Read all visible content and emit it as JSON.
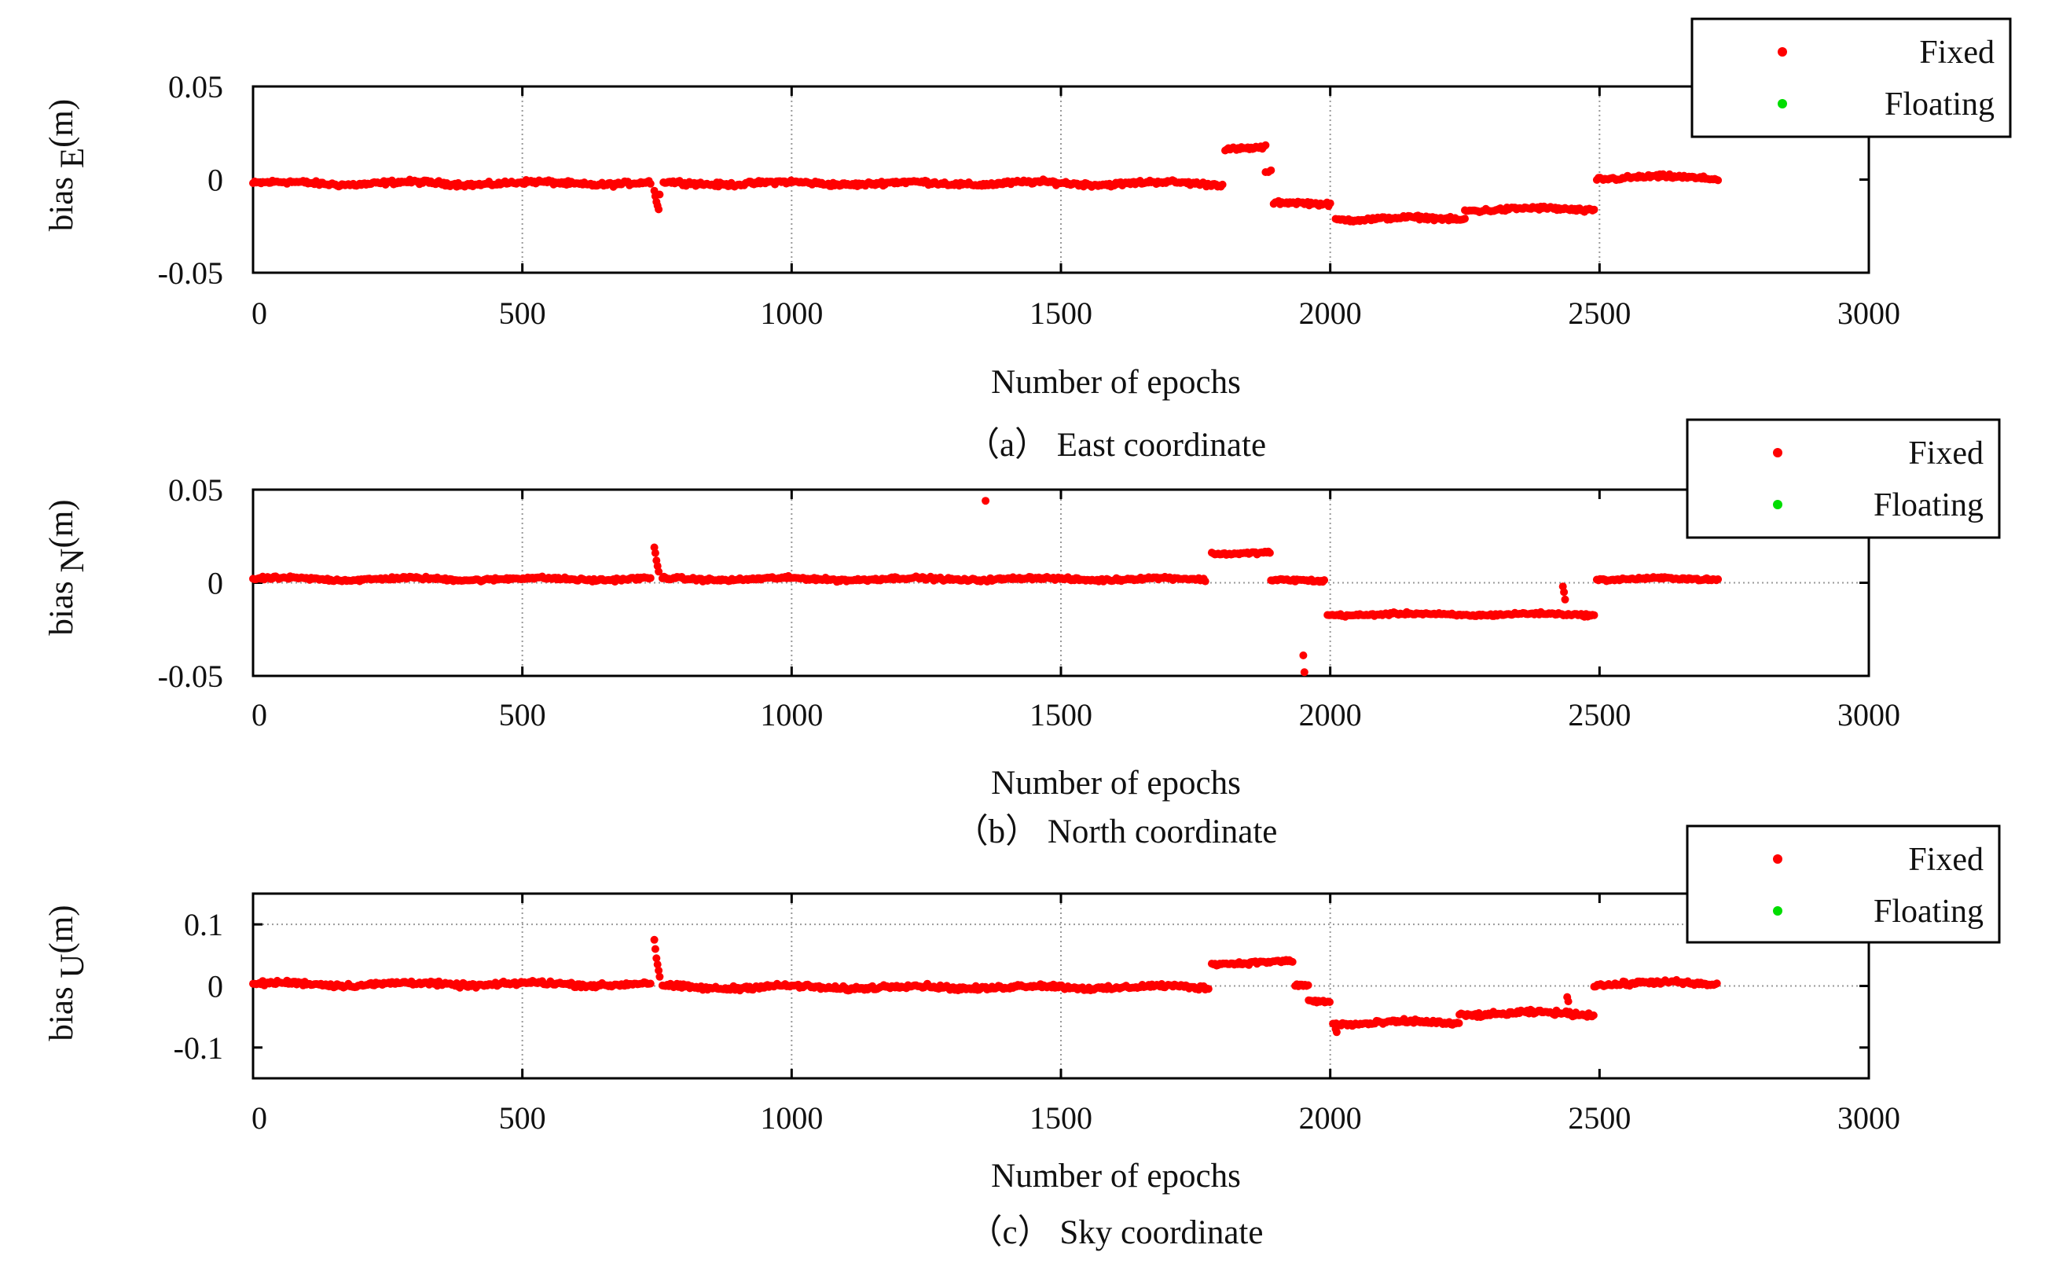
{
  "chart_data": [
    {
      "type": "scatter",
      "caption": "（a） East coordinate",
      "xlabel": "Number of epochs",
      "ylabel_main": "bias",
      "ylabel_sub": "E",
      "ylabel_unit": "(m)",
      "xlim": [
        0,
        3000
      ],
      "ylim": [
        -0.05,
        0.05
      ],
      "xticks": [
        0,
        500,
        1000,
        1500,
        2000,
        2500,
        3000
      ],
      "xtick_labels": [
        "0",
        "500",
        "1000",
        "1500",
        "2000",
        "2500",
        "3000"
      ],
      "yticks": [
        -0.05,
        0,
        0.05
      ],
      "ytick_labels": [
        "-0.05",
        "0",
        "0.05"
      ],
      "grid_x": [
        500,
        1000,
        1500,
        2000,
        2500
      ],
      "grid_y": [],
      "legend": {
        "position": "top-right",
        "entries": [
          {
            "label": "Fixed",
            "color": "#ff0000"
          },
          {
            "label": "Floating",
            "color": "#00dd00"
          }
        ]
      },
      "series": [
        {
          "name": "Fixed",
          "color": "#ff0000",
          "segments": [
            {
              "x0": 0,
              "x1": 740,
              "level": -0.002,
              "noise": 0.0016
            },
            {
              "x0": 762,
              "x1": 1800,
              "level": -0.002,
              "noise": 0.0016
            },
            {
              "x0": 1805,
              "x1": 1880,
              "level": 0.017,
              "noise": 0.0014
            },
            {
              "x0": 1895,
              "x1": 2000,
              "level": -0.013,
              "noise": 0.0014
            },
            {
              "x0": 2010,
              "x1": 2250,
              "level": -0.021,
              "noise": 0.0014
            },
            {
              "x0": 2250,
              "x1": 2490,
              "level": -0.016,
              "noise": 0.0015
            },
            {
              "x0": 2495,
              "x1": 2720,
              "level": 0.001,
              "noise": 0.0015
            }
          ],
          "points": [
            [
              745,
              -0.006
            ],
            [
              747,
              -0.009
            ],
            [
              749,
              -0.012
            ],
            [
              751,
              -0.014
            ],
            [
              753,
              -0.016
            ],
            [
              755,
              -0.008
            ],
            [
              1880,
              0.004
            ],
            [
              1885,
              0.004
            ],
            [
              1890,
              0.005
            ]
          ]
        },
        {
          "name": "Floating",
          "color": "#00dd00",
          "segments": [],
          "points": []
        }
      ]
    },
    {
      "type": "scatter",
      "caption": "（b） North coordinate",
      "xlabel": "Number of epochs",
      "ylabel_main": "bias",
      "ylabel_sub": "N",
      "ylabel_unit": "(m)",
      "xlim": [
        0,
        3000
      ],
      "ylim": [
        -0.05,
        0.05
      ],
      "xticks": [
        0,
        500,
        1000,
        1500,
        2000,
        2500,
        3000
      ],
      "xtick_labels": [
        "0",
        "500",
        "1000",
        "1500",
        "2000",
        "2500",
        "3000"
      ],
      "yticks": [
        -0.05,
        0,
        0.05
      ],
      "ytick_labels": [
        "-0.05",
        "0",
        "0.05"
      ],
      "grid_x": [
        500,
        1000,
        1500,
        2000
      ],
      "grid_y": [
        0
      ],
      "legend": {
        "position": "top-right",
        "entries": [
          {
            "label": "Fixed",
            "color": "#ff0000"
          },
          {
            "label": "Floating",
            "color": "#00dd00"
          }
        ]
      },
      "series": [
        {
          "name": "Fixed",
          "color": "#ff0000",
          "segments": [
            {
              "x0": 0,
              "x1": 740,
              "level": 0.002,
              "noise": 0.0012
            },
            {
              "x0": 760,
              "x1": 1770,
              "level": 0.002,
              "noise": 0.0012
            },
            {
              "x0": 1780,
              "x1": 1890,
              "level": 0.016,
              "noise": 0.001
            },
            {
              "x0": 1890,
              "x1": 1990,
              "level": 0.001,
              "noise": 0.001
            },
            {
              "x0": 1995,
              "x1": 2490,
              "level": -0.017,
              "noise": 0.001
            },
            {
              "x0": 2495,
              "x1": 2720,
              "level": 0.002,
              "noise": 0.001
            }
          ],
          "points": [
            [
              745,
              0.019
            ],
            [
              747,
              0.016
            ],
            [
              749,
              0.012
            ],
            [
              751,
              0.009
            ],
            [
              753,
              0.006
            ],
            [
              1360,
              0.044
            ],
            [
              1950,
              -0.039
            ],
            [
              1952,
              -0.048
            ],
            [
              2432,
              -0.002
            ],
            [
              2434,
              -0.005
            ],
            [
              2436,
              -0.009
            ]
          ]
        },
        {
          "name": "Floating",
          "color": "#00dd00",
          "segments": [],
          "points": []
        }
      ]
    },
    {
      "type": "scatter",
      "caption": "（c） Sky coordinate",
      "xlabel": "Number of epochs",
      "ylabel_main": "bias",
      "ylabel_sub": "U",
      "ylabel_unit": "(m)",
      "xlim": [
        0,
        3000
      ],
      "ylim": [
        -0.15,
        0.15
      ],
      "xticks": [
        0,
        500,
        1000,
        1500,
        2000,
        2500,
        3000
      ],
      "xtick_labels": [
        "0",
        "500",
        "1000",
        "1500",
        "2000",
        "2500",
        "3000"
      ],
      "yticks": [
        -0.1,
        0,
        0.1
      ],
      "ytick_labels": [
        "-0.1",
        "0",
        "0.1"
      ],
      "grid_x": [
        500,
        1000,
        1500,
        2000
      ],
      "grid_y": [
        0,
        0.1
      ],
      "legend": {
        "position": "top-right",
        "entries": [
          {
            "label": "Fixed",
            "color": "#ff0000"
          },
          {
            "label": "Floating",
            "color": "#00dd00"
          }
        ]
      },
      "series": [
        {
          "name": "Fixed",
          "color": "#ff0000",
          "segments": [
            {
              "x0": 0,
              "x1": 740,
              "level": 0.003,
              "noise": 0.005
            },
            {
              "x0": 760,
              "x1": 1775,
              "level": -0.002,
              "noise": 0.005
            },
            {
              "x0": 1780,
              "x1": 1930,
              "level": 0.038,
              "noise": 0.004
            },
            {
              "x0": 1935,
              "x1": 1960,
              "level": 0.0,
              "noise": 0.003
            },
            {
              "x0": 1960,
              "x1": 2000,
              "level": -0.025,
              "noise": 0.004
            },
            {
              "x0": 2005,
              "x1": 2240,
              "level": -0.06,
              "noise": 0.005
            },
            {
              "x0": 2240,
              "x1": 2490,
              "level": -0.045,
              "noise": 0.005
            },
            {
              "x0": 2490,
              "x1": 2720,
              "level": 0.004,
              "noise": 0.005
            }
          ],
          "points": [
            [
              745,
              0.075
            ],
            [
              747,
              0.06
            ],
            [
              749,
              0.045
            ],
            [
              751,
              0.035
            ],
            [
              753,
              0.025
            ],
            [
              755,
              0.015
            ],
            [
              2010,
              -0.07
            ],
            [
              2012,
              -0.075
            ],
            [
              2440,
              -0.018
            ],
            [
              2442,
              -0.025
            ]
          ]
        },
        {
          "name": "Floating",
          "color": "#00dd00",
          "segments": [],
          "points": []
        }
      ]
    }
  ]
}
